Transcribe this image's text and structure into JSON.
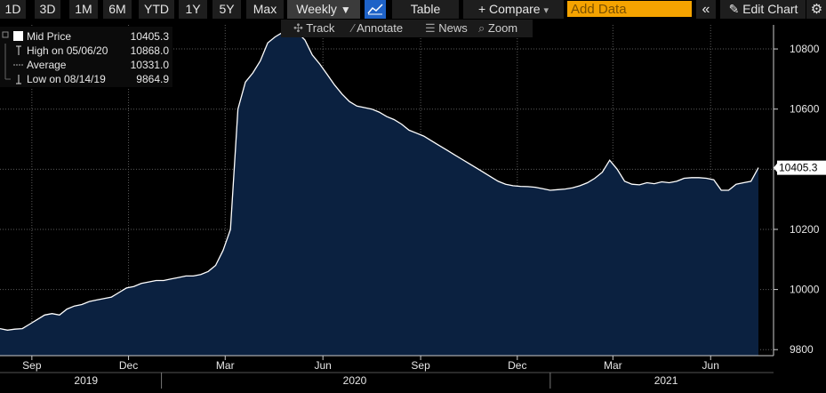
{
  "toolbar": {
    "ranges": [
      "1D",
      "3D",
      "1M",
      "6M",
      "YTD",
      "1Y",
      "5Y",
      "Max"
    ],
    "frequency": "Weekly",
    "frequency_arrow": "▼",
    "chart_icon": "line-chart-icon",
    "table_label": "Table",
    "compare_label": "+ Compare",
    "compare_arrow": "▾",
    "add_data_placeholder": "Add Data",
    "collapse_icon": "«",
    "edit_chart_label": "Edit Chart",
    "pencil_icon": "✎",
    "settings_icon": "⚙"
  },
  "subbar": {
    "track_icon": "✣",
    "track": "Track",
    "annotate_icon": "⁄",
    "annotate": "Annotate",
    "news_icon": "☰",
    "news": "News",
    "zoom_icon": "⌕",
    "zoom": "Zoom"
  },
  "legend": {
    "items": [
      {
        "label": "Mid Price",
        "value": "10405.3"
      },
      {
        "label": "High on 05/06/20",
        "value": "10868.0"
      },
      {
        "label": "Average",
        "value": "10331.0"
      },
      {
        "label": "Low on 08/14/19",
        "value": "9864.9"
      }
    ]
  },
  "colors": {
    "area_fill": "#0b2140",
    "line": "#ffffff",
    "grid": "#5a5a5a",
    "accent_orange": "#f5a300",
    "accent_blue": "#1e62c7"
  },
  "chart_data": {
    "type": "area",
    "last_value_label": "10405.3",
    "yticks": [
      "9800",
      "10000",
      "10200",
      "10400",
      "10600",
      "10800"
    ],
    "ylim": [
      9780,
      10880
    ],
    "xticks": [
      "Sep",
      "Dec",
      "Mar",
      "Jun",
      "Sep",
      "Dec",
      "Mar",
      "Jun"
    ],
    "years": [
      "2019",
      "2020",
      "2021"
    ],
    "x": [
      "2019-08-02",
      "2019-08-09",
      "2019-08-16",
      "2019-08-23",
      "2019-08-30",
      "2019-09-06",
      "2019-09-13",
      "2019-09-20",
      "2019-09-27",
      "2019-10-04",
      "2019-10-11",
      "2019-10-18",
      "2019-10-25",
      "2019-11-01",
      "2019-11-08",
      "2019-11-15",
      "2019-11-22",
      "2019-11-29",
      "2019-12-06",
      "2019-12-13",
      "2019-12-20",
      "2019-12-27",
      "2020-01-03",
      "2020-01-10",
      "2020-01-17",
      "2020-01-24",
      "2020-01-31",
      "2020-02-07",
      "2020-02-14",
      "2020-02-21",
      "2020-02-28",
      "2020-03-06",
      "2020-03-13",
      "2020-03-20",
      "2020-03-27",
      "2020-04-03",
      "2020-04-10",
      "2020-04-17",
      "2020-04-24",
      "2020-05-01",
      "2020-05-08",
      "2020-05-15",
      "2020-05-22",
      "2020-05-29",
      "2020-06-05",
      "2020-06-12",
      "2020-06-19",
      "2020-06-26",
      "2020-07-03",
      "2020-07-10",
      "2020-07-17",
      "2020-07-24",
      "2020-07-31",
      "2020-08-07",
      "2020-08-14",
      "2020-08-21",
      "2020-08-28",
      "2020-09-04",
      "2020-09-11",
      "2020-09-18",
      "2020-09-25",
      "2020-10-02",
      "2020-10-09",
      "2020-10-16",
      "2020-10-23",
      "2020-10-30",
      "2020-11-06",
      "2020-11-13",
      "2020-11-20",
      "2020-11-27",
      "2020-12-04",
      "2020-12-11",
      "2020-12-18",
      "2020-12-25",
      "2021-01-01",
      "2021-01-08",
      "2021-01-15",
      "2021-01-22",
      "2021-01-29",
      "2021-02-05",
      "2021-02-12",
      "2021-02-19",
      "2021-02-26",
      "2021-03-05",
      "2021-03-12",
      "2021-03-19",
      "2021-03-26",
      "2021-04-02",
      "2021-04-09",
      "2021-04-16",
      "2021-04-23",
      "2021-04-30",
      "2021-05-07",
      "2021-05-14",
      "2021-05-21",
      "2021-05-28",
      "2021-06-04",
      "2021-06-11",
      "2021-06-18",
      "2021-06-25",
      "2021-07-02",
      "2021-07-09",
      "2021-07-16"
    ],
    "values": [
      9870,
      9865,
      9868,
      9870,
      9885,
      9900,
      9915,
      9920,
      9915,
      9935,
      9945,
      9950,
      9960,
      9965,
      9970,
      9975,
      9990,
      10005,
      10010,
      10020,
      10025,
      10030,
      10030,
      10035,
      10040,
      10045,
      10045,
      10050,
      10060,
      10080,
      10130,
      10200,
      10600,
      10690,
      10720,
      10760,
      10820,
      10840,
      10855,
      10868,
      10855,
      10830,
      10780,
      10750,
      10715,
      10680,
      10650,
      10625,
      10610,
      10605,
      10600,
      10590,
      10575,
      10565,
      10550,
      10530,
      10520,
      10510,
      10495,
      10480,
      10465,
      10450,
      10435,
      10420,
      10405,
      10390,
      10375,
      10360,
      10350,
      10345,
      10343,
      10342,
      10340,
      10335,
      10330,
      10332,
      10334,
      10338,
      10345,
      10355,
      10370,
      10390,
      10430,
      10400,
      10360,
      10350,
      10348,
      10355,
      10352,
      10358,
      10355,
      10360,
      10370,
      10372,
      10372,
      10370,
      10365,
      10330,
      10330,
      10350,
      10355,
      10360,
      10405
    ]
  }
}
